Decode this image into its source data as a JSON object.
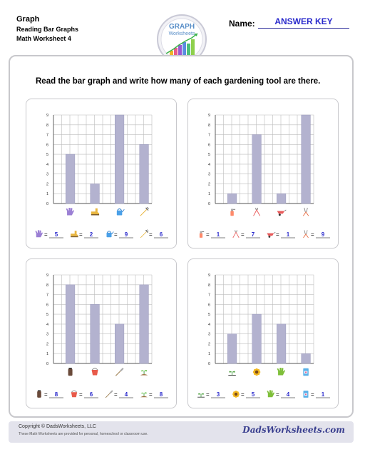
{
  "header": {
    "title": "Graph",
    "subtitle1": "Reading Bar Graphs",
    "subtitle2": "Math Worksheet 4",
    "name_label": "Name:",
    "name_value": "ANSWER KEY"
  },
  "logo": {
    "line1": "GRAPH",
    "line2": "Worksheets"
  },
  "instruction": "Read the bar graph and write how many of each gardening tool are there.",
  "footer": {
    "copyright": "Copyright © DadsWorksheets, LLC",
    "note": "These Math Worksheets are provided for personal, homeschool or classroom use.",
    "brand": "DadsWorksheets.com"
  },
  "colors": {
    "bar": "#b3b2cf",
    "bar_stroke": "#9a99bb",
    "answer": "#2a2acc",
    "grid": "#bdbdbd"
  },
  "chart_data": [
    {
      "type": "bar",
      "categories": [
        "glove",
        "boot",
        "watering-can",
        "rake"
      ],
      "values": [
        5,
        2,
        9,
        6
      ],
      "ylim": [
        0,
        9
      ],
      "yticks": [
        "0",
        "1",
        "2",
        "3",
        "4",
        "5",
        "6",
        "7",
        "8",
        "9"
      ],
      "answers": [
        "5",
        "2",
        "9",
        "6"
      ]
    },
    {
      "type": "bar",
      "categories": [
        "spray-bottle",
        "pruning-shears",
        "wheelbarrow",
        "hedge-clippers"
      ],
      "values": [
        1,
        7,
        1,
        9
      ],
      "ylim": [
        0,
        9
      ],
      "yticks": [
        "0",
        "1",
        "2",
        "3",
        "4",
        "5",
        "6",
        "7",
        "8",
        "9"
      ],
      "answers": [
        "1",
        "7",
        "1",
        "9"
      ]
    },
    {
      "type": "bar",
      "categories": [
        "trash-bin",
        "bucket",
        "shovel",
        "sprout"
      ],
      "values": [
        8,
        6,
        4,
        8
      ],
      "ylim": [
        0,
        9
      ],
      "yticks": [
        "0",
        "1",
        "2",
        "3",
        "4",
        "5",
        "6",
        "7",
        "8",
        "9"
      ],
      "answers": [
        "8",
        "6",
        "4",
        "8"
      ]
    },
    {
      "type": "bar",
      "categories": [
        "seedling",
        "sunflower",
        "gloves",
        "seed-packet"
      ],
      "values": [
        3,
        5,
        4,
        1
      ],
      "ylim": [
        0,
        9
      ],
      "yticks": [
        "0",
        "1",
        "2",
        "3",
        "4",
        "5",
        "6",
        "7",
        "8",
        "9"
      ],
      "answers": [
        "3",
        "5",
        "4",
        "1"
      ]
    }
  ]
}
